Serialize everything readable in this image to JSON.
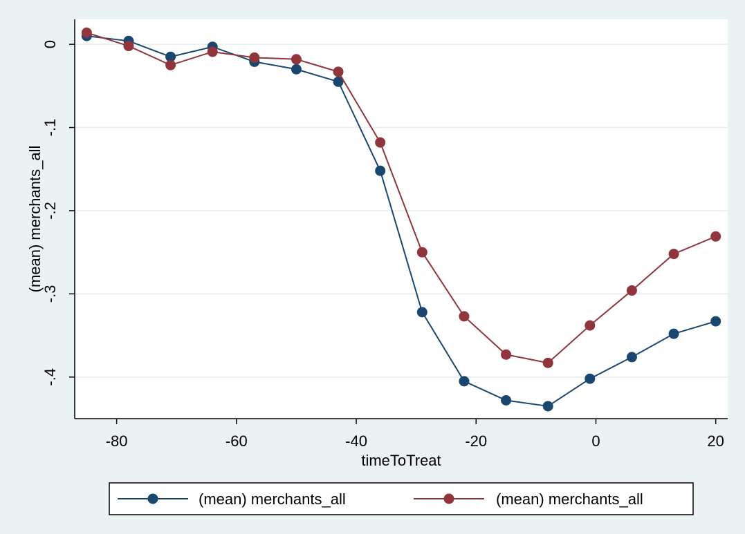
{
  "chart_data": {
    "type": "line",
    "title": "",
    "xlabel": "timeToTreat",
    "ylabel": "(mean) merchants_all",
    "xlim": [
      -87,
      22
    ],
    "ylim": [
      -0.45,
      0.03
    ],
    "grid": "horizontal",
    "legend_position": "bottom",
    "x": [
      -85,
      -78,
      -71,
      -64,
      -57,
      -50,
      -43,
      -36,
      -29,
      -22,
      -15,
      -8,
      -1,
      6,
      13,
      20
    ],
    "x_ticks": [
      -80,
      -60,
      -40,
      -20,
      0,
      20
    ],
    "x_tick_labels": [
      "-80",
      "-60",
      "-40",
      "-20",
      "0",
      "20"
    ],
    "y_ticks": [
      0,
      -0.1,
      -0.2,
      -0.3,
      -0.4
    ],
    "y_tick_labels": [
      "0",
      "-.1",
      "-.2",
      "-.3",
      "-.4"
    ],
    "series": [
      {
        "name": "(mean) merchants_all",
        "color": "#1a476f",
        "values": [
          0.01,
          0.004,
          -0.015,
          -0.003,
          -0.021,
          -0.03,
          -0.045,
          -0.152,
          -0.322,
          -0.405,
          -0.428,
          -0.435,
          -0.402,
          -0.376,
          -0.348,
          -0.333
        ]
      },
      {
        "name": "(mean) merchants_all",
        "color": "#90353b",
        "values": [
          0.014,
          -0.002,
          -0.025,
          -0.009,
          -0.016,
          -0.018,
          -0.033,
          -0.118,
          -0.25,
          -0.327,
          -0.373,
          -0.383,
          -0.338,
          -0.296,
          -0.252,
          -0.231
        ]
      }
    ]
  }
}
